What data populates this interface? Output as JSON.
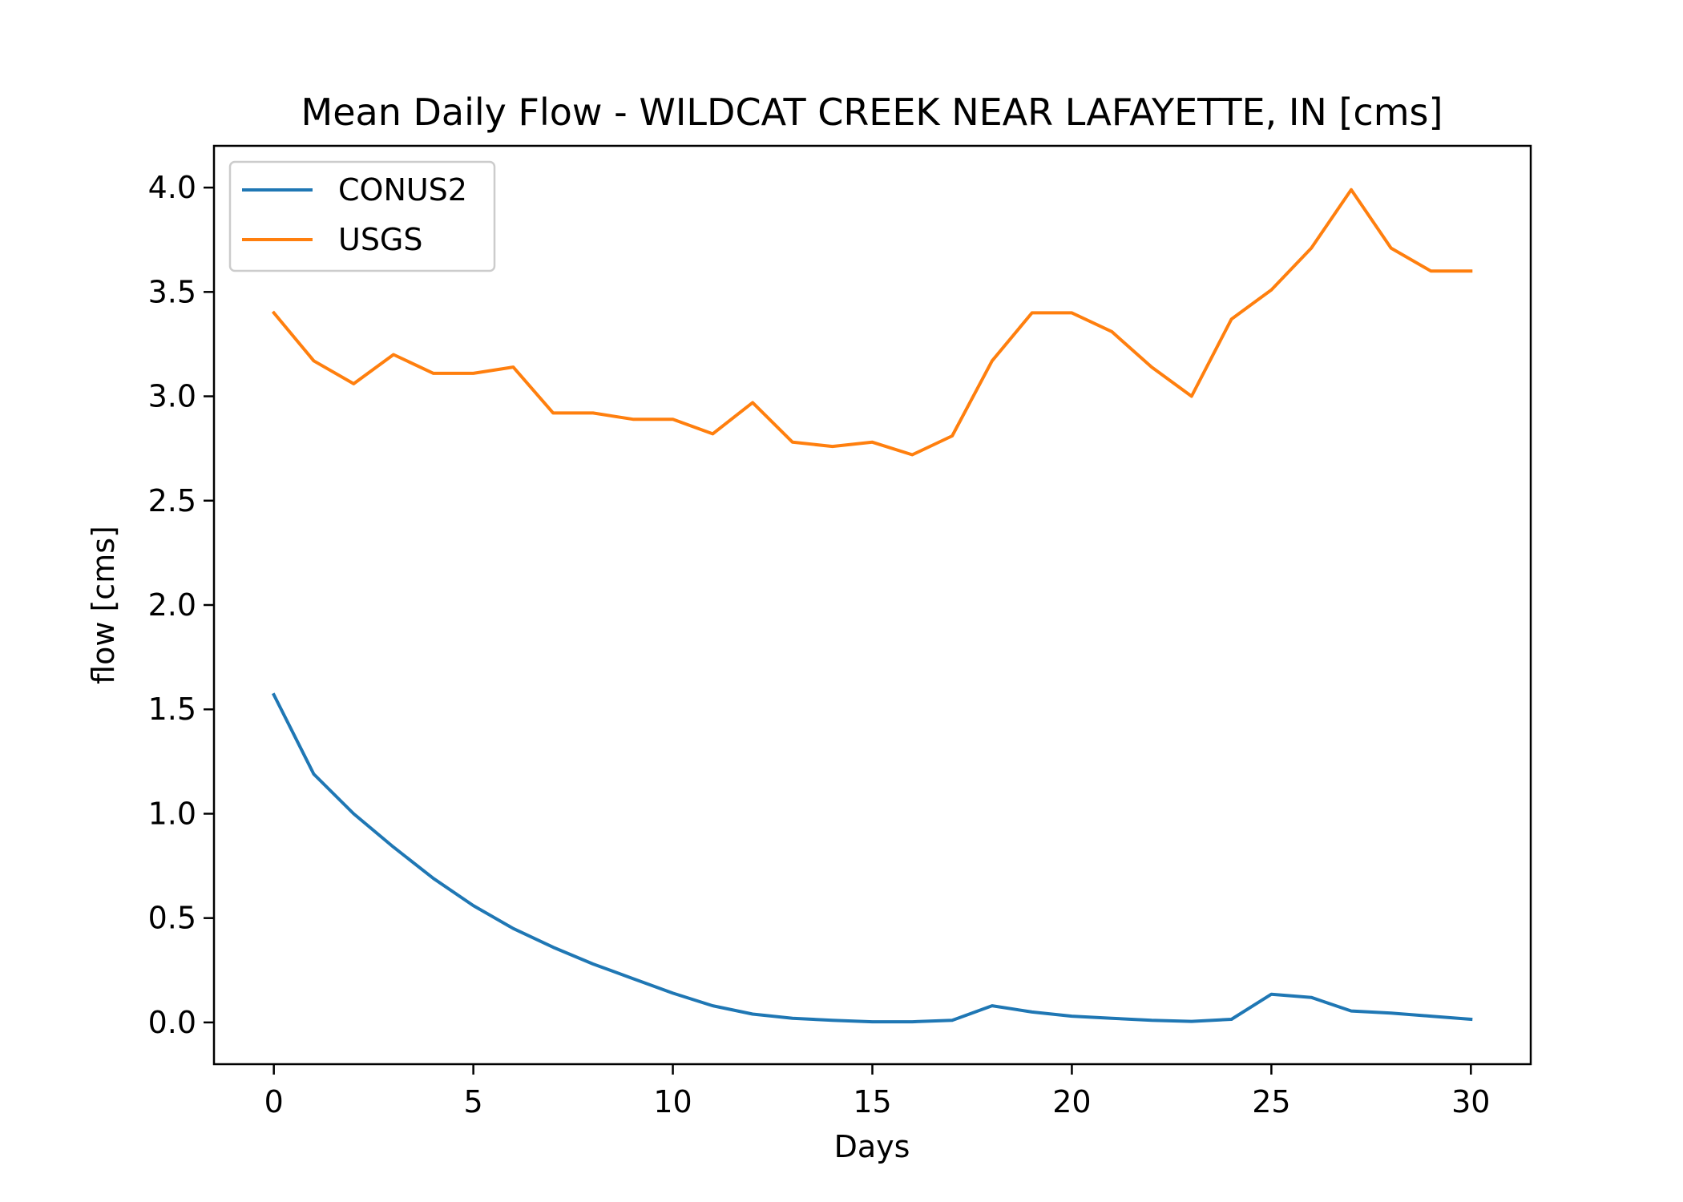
{
  "chart_data": {
    "type": "line",
    "title": "Mean Daily Flow - WILDCAT CREEK NEAR LAFAYETTE, IN [cms]",
    "xlabel": "Days",
    "ylabel": "flow [cms]",
    "xlim": [
      -1.5,
      31.5
    ],
    "ylim": [
      -0.2,
      4.2
    ],
    "xticks": [
      0,
      5,
      10,
      15,
      20,
      25,
      30
    ],
    "yticks": [
      0.0,
      0.5,
      1.0,
      1.5,
      2.0,
      2.5,
      3.0,
      3.5,
      4.0
    ],
    "xtick_labels": [
      "0",
      "5",
      "10",
      "15",
      "20",
      "25",
      "30"
    ],
    "ytick_labels": [
      "0.0",
      "0.5",
      "1.0",
      "1.5",
      "2.0",
      "2.5",
      "3.0",
      "3.5",
      "4.0"
    ],
    "grid": false,
    "legend_position": "upper-left",
    "x": [
      0,
      1,
      2,
      3,
      4,
      5,
      6,
      7,
      8,
      9,
      10,
      11,
      12,
      13,
      14,
      15,
      16,
      17,
      18,
      19,
      20,
      21,
      22,
      23,
      24,
      25,
      26,
      27,
      28,
      29,
      30
    ],
    "series": [
      {
        "name": "CONUS2",
        "color": "#1f77b4",
        "values": [
          1.57,
          1.19,
          1.0,
          0.84,
          0.69,
          0.56,
          0.45,
          0.36,
          0.28,
          0.21,
          0.14,
          0.08,
          0.04,
          0.02,
          0.01,
          0.003,
          0.003,
          0.01,
          0.08,
          0.05,
          0.03,
          0.02,
          0.01,
          0.005,
          0.015,
          0.135,
          0.12,
          0.055,
          0.045,
          0.03,
          0.015
        ]
      },
      {
        "name": "USGS",
        "color": "#ff7f0e",
        "values": [
          3.4,
          3.17,
          3.06,
          3.2,
          3.11,
          3.11,
          3.14,
          2.92,
          2.92,
          2.89,
          2.89,
          2.82,
          2.97,
          2.78,
          2.76,
          2.78,
          2.72,
          2.81,
          3.17,
          3.4,
          3.4,
          3.31,
          3.14,
          3.0,
          3.37,
          3.51,
          3.71,
          3.99,
          3.71,
          3.6,
          3.6
        ]
      }
    ]
  }
}
